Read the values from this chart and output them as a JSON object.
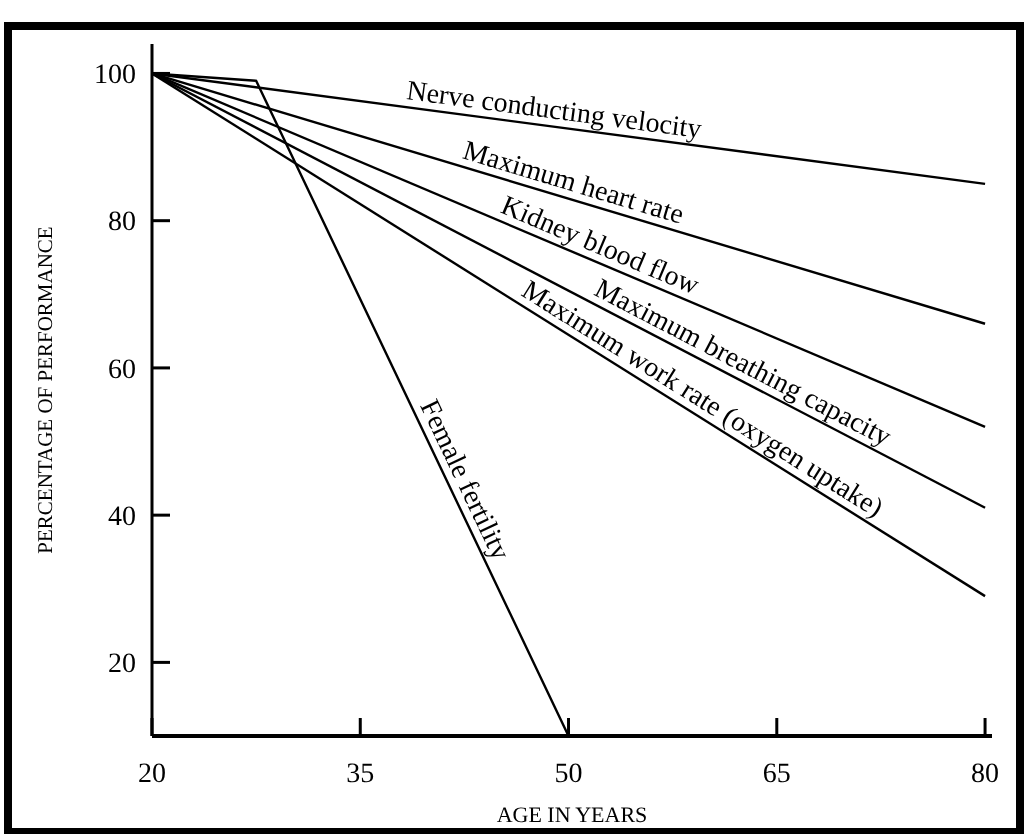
{
  "chart_data": {
    "type": "line",
    "xlabel": "AGE IN YEARS",
    "ylabel": "PERCENTAGE OF PERFORMANCE",
    "xlim": [
      20,
      80.5
    ],
    "ylim": [
      10,
      104
    ],
    "xticks": [
      20,
      35,
      50,
      65,
      80
    ],
    "yticks": [
      20,
      40,
      60,
      80,
      100
    ],
    "grid": false,
    "marker": "none",
    "line_style": "solid",
    "series": [
      {
        "name": "Nerve conducting velocity",
        "color": "#000000",
        "x": [
          20,
          80
        ],
        "values": [
          100,
          85
        ]
      },
      {
        "name": "Maximum heart rate",
        "color": "#000000",
        "x": [
          20,
          80
        ],
        "values": [
          100,
          66
        ]
      },
      {
        "name": "Kidney blood flow",
        "color": "#000000",
        "x": [
          20,
          80
        ],
        "values": [
          100,
          52
        ]
      },
      {
        "name": "Maximum breathing capacity",
        "color": "#000000",
        "x": [
          20,
          80
        ],
        "values": [
          100,
          41
        ]
      },
      {
        "name": "Maximum work rate (oxygen uptake)",
        "color": "#000000",
        "x": [
          20,
          80
        ],
        "values": [
          100,
          29
        ]
      },
      {
        "name": "Female fertility",
        "color": "#000000",
        "x": [
          20,
          27.5,
          50
        ],
        "values": [
          100,
          99,
          10
        ]
      }
    ]
  }
}
